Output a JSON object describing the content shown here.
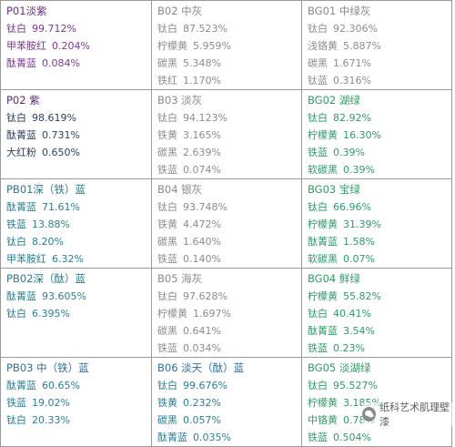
{
  "rows": [
    [
      {
        "title": "P01淡紫",
        "scheme": "p01",
        "items": [
          {
            "name": "钛白",
            "value": "99.712%"
          },
          {
            "name": "甲苯胺红",
            "value": "0.204%"
          },
          {
            "name": "酞菁蓝",
            "value": "0.084%"
          }
        ]
      },
      {
        "title": "B02 中灰",
        "scheme": "b",
        "items": [
          {
            "name": "钛白",
            "value": "87.523%"
          },
          {
            "name": "柠檬黄",
            "value": "5.959%"
          },
          {
            "name": "碳黑",
            "value": "5.348%"
          },
          {
            "name": "铁红",
            "value": "1.170%"
          }
        ]
      },
      {
        "title": "BG01 中绿灰",
        "scheme": "bg01",
        "items": [
          {
            "name": "钛白",
            "value": "92.306%"
          },
          {
            "name": "浅铬黄",
            "value": "5.887%"
          },
          {
            "name": "碳黑",
            "value": "1.671%"
          },
          {
            "name": "钛蓝",
            "value": "0.316%"
          }
        ]
      }
    ],
    [
      {
        "title": "P02 紫",
        "scheme": "p02",
        "items": [
          {
            "name": "钛白",
            "value": "98.619%"
          },
          {
            "name": "酞菁蓝",
            "value": "0.731%"
          },
          {
            "name": "大红粉",
            "value": "0.650%"
          }
        ]
      },
      {
        "title": "B03 淡灰",
        "scheme": "b",
        "items": [
          {
            "name": "钛白",
            "value": "94.123%"
          },
          {
            "name": "铁黄",
            "value": "3.165%"
          },
          {
            "name": "碳黑",
            "value": "2.639%"
          },
          {
            "name": "铁蓝",
            "value": "0.074%"
          }
        ]
      },
      {
        "title": "BG02 湖绿",
        "scheme": "bg",
        "items": [
          {
            "name": "钛白",
            "value": "82.92%"
          },
          {
            "name": "柠檬黄",
            "value": "16.30%"
          },
          {
            "name": "铁蓝",
            "value": "0.39%"
          },
          {
            "name": "软碳黑",
            "value": "0.39%"
          }
        ]
      }
    ],
    [
      {
        "title": "PB01深（铁）蓝",
        "scheme": "pb",
        "items": [
          {
            "name": "酞菁蓝",
            "value": "71.61%"
          },
          {
            "name": "铁蓝",
            "value": "13.88%"
          },
          {
            "name": "钛白",
            "value": "8.20%"
          },
          {
            "name": "甲苯胺红",
            "value": "6.32%"
          }
        ]
      },
      {
        "title": "B04 银灰",
        "scheme": "b",
        "items": [
          {
            "name": "钛白",
            "value": "93.748%"
          },
          {
            "name": "铁黄",
            "value": "4.472%"
          },
          {
            "name": "碳黑",
            "value": "1.640%"
          },
          {
            "name": "铁蓝",
            "value": "0.140%"
          }
        ]
      },
      {
        "title": "BG03 宝绿",
        "scheme": "bg",
        "items": [
          {
            "name": "钛白",
            "value": "66.96%"
          },
          {
            "name": "柠檬黄",
            "value": "31.39%"
          },
          {
            "name": "酞菁蓝",
            "value": "1.58%"
          },
          {
            "name": "软碳黑",
            "value": "0.07%"
          }
        ]
      }
    ],
    [
      {
        "title": "PB02深（酞）蓝",
        "scheme": "pb",
        "items": [
          {
            "name": "酞菁蓝",
            "value": "93.605%"
          },
          {
            "name": "钛白",
            "value": "6.395%"
          }
        ]
      },
      {
        "title": "B05 海灰",
        "scheme": "b",
        "items": [
          {
            "name": "钛白",
            "value": "97.628%"
          },
          {
            "name": "柠檬黄",
            "value": "1.697%"
          },
          {
            "name": "碳黑",
            "value": "0.641%"
          },
          {
            "name": "铁蓝",
            "value": "0.034%"
          }
        ]
      },
      {
        "title": "BG04 鲜绿",
        "scheme": "bg",
        "items": [
          {
            "name": "柠檬黄",
            "value": "55.82%"
          },
          {
            "name": "钛白",
            "value": "40.41%"
          },
          {
            "name": "酞菁蓝",
            "value": "3.54%"
          },
          {
            "name": "铁蓝",
            "value": "0.23%"
          }
        ]
      }
    ],
    [
      {
        "title": "PB03 中（铁）蓝",
        "scheme": "pb03",
        "items": [
          {
            "name": "酞菁蓝",
            "value": "60.65%"
          },
          {
            "name": "铁蓝",
            "value": "19.02%"
          },
          {
            "name": "钛白",
            "value": "20.33%"
          }
        ]
      },
      {
        "title": "B06 淡天（酞）蓝",
        "scheme": "b06",
        "items": [
          {
            "name": "钛白",
            "value": "99.676%"
          },
          {
            "name": "铁黄",
            "value": "0.232%"
          },
          {
            "name": "碳黑",
            "value": "0.057%"
          },
          {
            "name": "酞菁蓝",
            "value": "0.035%"
          }
        ]
      },
      {
        "title": "BG05 淡湖绿",
        "scheme": "bg",
        "items": [
          {
            "name": "钛白",
            "value": "95.527%"
          },
          {
            "name": "柠檬黄",
            "value": "3.185%"
          },
          {
            "name": "中铬黄",
            "value": "0.78%"
          },
          {
            "name": "铁蓝",
            "value": "0.504%"
          }
        ]
      }
    ]
  ],
  "watermark": {
    "text": "纸科艺术肌理壁漆",
    "icon": "wechat-icon"
  },
  "colors": {
    "border": "#9a9a9a",
    "gray": "#8a8a8a",
    "green": "#2f9a66",
    "teal": "#2b7a8e",
    "purple": "#6a2d84"
  }
}
